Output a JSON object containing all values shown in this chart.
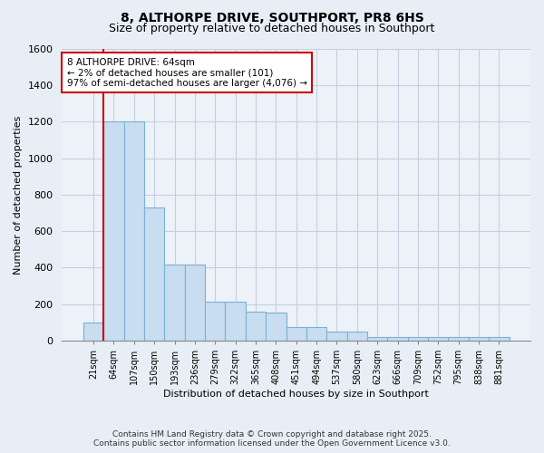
{
  "title_line1": "8, ALTHORPE DRIVE, SOUTHPORT, PR8 6HS",
  "title_line2": "Size of property relative to detached houses in Southport",
  "xlabel": "Distribution of detached houses by size in Southport",
  "ylabel": "Number of detached properties",
  "categories": [
    "21sqm",
    "64sqm",
    "107sqm",
    "150sqm",
    "193sqm",
    "236sqm",
    "279sqm",
    "322sqm",
    "365sqm",
    "408sqm",
    "451sqm",
    "494sqm",
    "537sqm",
    "580sqm",
    "623sqm",
    "666sqm",
    "709sqm",
    "752sqm",
    "795sqm",
    "838sqm",
    "881sqm"
  ],
  "values": [
    100,
    1200,
    1200,
    730,
    415,
    415,
    215,
    215,
    160,
    155,
    75,
    75,
    50,
    50,
    20,
    20,
    20,
    20,
    20,
    20,
    20
  ],
  "bar_color": "#c8ddf0",
  "bar_edge_color": "#7ab0d8",
  "highlight_bar_index": 1,
  "highlight_color": "#cc0000",
  "ylim": [
    0,
    1600
  ],
  "yticks": [
    0,
    200,
    400,
    600,
    800,
    1000,
    1200,
    1400,
    1600
  ],
  "annotation_title": "8 ALTHORPE DRIVE: 64sqm",
  "annotation_line2": "← 2% of detached houses are smaller (101)",
  "annotation_line3": "97% of semi-detached houses are larger (4,076) →",
  "annotation_box_color": "#cc0000",
  "footer_line1": "Contains HM Land Registry data © Crown copyright and database right 2025.",
  "footer_line2": "Contains public sector information licensed under the Open Government Licence v3.0.",
  "background_color": "#e8eef5",
  "plot_bg_color": "#edf2f8",
  "grid_color": "#c5cfe0"
}
